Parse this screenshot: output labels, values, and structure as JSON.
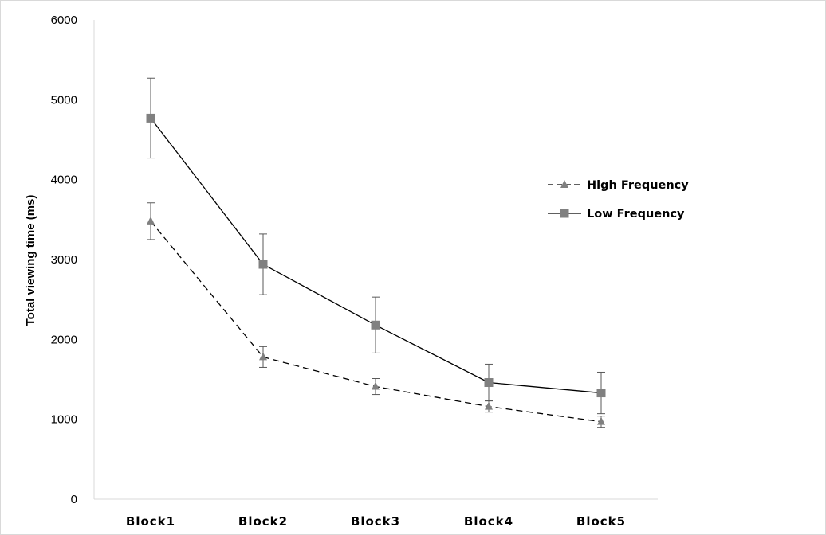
{
  "chart_data": {
    "type": "line",
    "title": "",
    "xlabel": "",
    "ylabel": "Total viewing time (ms)",
    "categories": [
      "Block1",
      "Block2",
      "Block3",
      "Block4",
      "Block5"
    ],
    "ylim": [
      0,
      6000
    ],
    "yticks": [
      "0",
      "1000",
      "2000",
      "3000",
      "4000",
      "5000",
      "6000"
    ],
    "grid": false,
    "legend_position": "right",
    "series": [
      {
        "name": "High Frequency",
        "marker": "triangle",
        "line_style": "dashed",
        "color": "#808080",
        "values": [
          3480,
          1780,
          1410,
          1160,
          970
        ],
        "error": [
          230,
          130,
          100,
          70,
          70
        ]
      },
      {
        "name": "Low Frequency",
        "marker": "square",
        "line_style": "solid",
        "color": "#808080",
        "values": [
          4770,
          2940,
          2180,
          1460,
          1330
        ],
        "error": [
          500,
          380,
          350,
          230,
          260
        ]
      }
    ]
  }
}
